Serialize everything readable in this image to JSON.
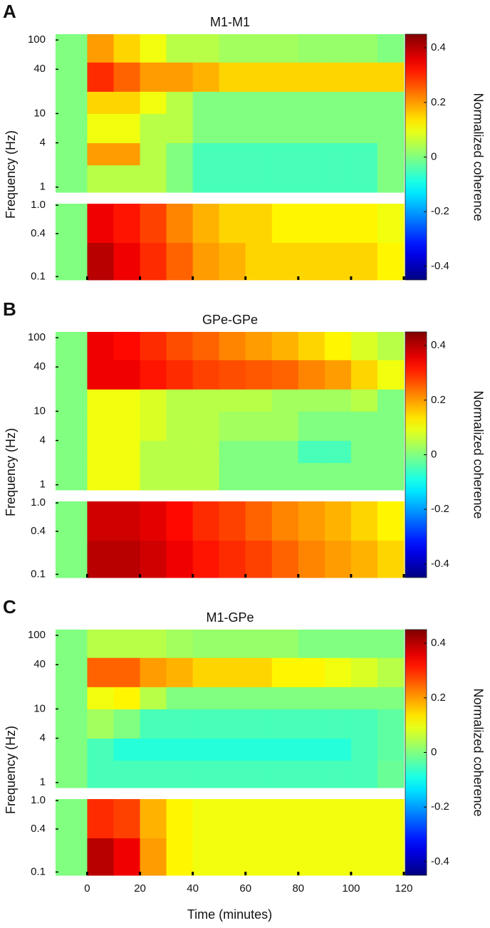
{
  "chart_data": [
    {
      "type": "heatmap",
      "panel": "A",
      "title": "M1-M1",
      "ylabel": "Frequency (Hz)",
      "x_bins": [
        -12,
        0,
        10,
        20,
        30,
        40,
        50,
        60,
        70,
        80,
        90,
        100,
        110,
        120
      ],
      "xlim": [
        -12,
        120
      ],
      "xticks": [
        0,
        20,
        40,
        60,
        80,
        100,
        120
      ],
      "upper": {
        "log": true,
        "ylim": [
          0.85,
          120
        ],
        "yticks": [
          1,
          4,
          10,
          40,
          100
        ],
        "y_bins": [
          0.85,
          2,
          4,
          10,
          20,
          50,
          120
        ],
        "z": [
          [
            0,
            0.05,
            0.05,
            0.05,
            0,
            -0.05,
            -0.05,
            -0.05,
            -0.05,
            -0.05,
            -0.05,
            -0.05,
            0
          ],
          [
            0,
            0.2,
            0.2,
            0.05,
            0,
            -0.05,
            -0.05,
            -0.05,
            -0.05,
            -0.05,
            -0.05,
            -0.05,
            0
          ],
          [
            0,
            0.1,
            0.1,
            0.05,
            0.05,
            0,
            0,
            0,
            0,
            0,
            0,
            0,
            0
          ],
          [
            0,
            0.15,
            0.15,
            0.1,
            0.05,
            0,
            0,
            0,
            0,
            0,
            0,
            0,
            0
          ],
          [
            0,
            0.3,
            0.25,
            0.2,
            0.2,
            0.18,
            0.15,
            0.15,
            0.15,
            0.15,
            0.15,
            0.15,
            0.15
          ],
          [
            0,
            0.2,
            0.15,
            0.1,
            0.05,
            0.05,
            0.03,
            0.03,
            0.03,
            0.02,
            0.02,
            0.02,
            0
          ]
        ]
      },
      "lower": {
        "log": true,
        "ylim": [
          0.09,
          1.05
        ],
        "yticks": [
          0.1,
          0.4,
          {
            "value": 1,
            "label": "1.0"
          }
        ],
        "y_bins": [
          0.09,
          0.3,
          1.05
        ],
        "z": [
          [
            0,
            0.4,
            0.35,
            0.3,
            0.25,
            0.2,
            0.18,
            0.15,
            0.15,
            0.15,
            0.15,
            0.15,
            0.12
          ],
          [
            0,
            0.35,
            0.32,
            0.28,
            0.22,
            0.18,
            0.15,
            0.15,
            0.12,
            0.12,
            0.12,
            0.12,
            0.1
          ]
        ]
      },
      "colorbar": {
        "label": "Normalized coherence",
        "lim": [
          -0.45,
          0.45
        ],
        "ticks": [
          -0.4,
          -0.2,
          0,
          0.2,
          0.4
        ]
      }
    },
    {
      "type": "heatmap",
      "panel": "B",
      "title": "GPe-GPe",
      "ylabel": "Frequency (Hz)",
      "x_bins": [
        -12,
        0,
        10,
        20,
        30,
        40,
        50,
        60,
        70,
        80,
        90,
        100,
        110,
        120
      ],
      "xlim": [
        -12,
        120
      ],
      "xticks": [
        0,
        20,
        40,
        60,
        80,
        100,
        120
      ],
      "upper": {
        "log": true,
        "ylim": [
          0.85,
          120
        ],
        "yticks": [
          1,
          4,
          10,
          40,
          100
        ],
        "y_bins": [
          0.85,
          2,
          4,
          10,
          20,
          50,
          120
        ],
        "z": [
          [
            0,
            0.1,
            0.1,
            0.05,
            0.05,
            0.05,
            0,
            0,
            0,
            0,
            0,
            0,
            0
          ],
          [
            0,
            0.1,
            0.1,
            0.05,
            0.05,
            0.05,
            0,
            0,
            0,
            -0.05,
            -0.05,
            0,
            0
          ],
          [
            0,
            0.1,
            0.1,
            0.08,
            0.05,
            0.05,
            0.03,
            0.03,
            0.03,
            0,
            0,
            0,
            0
          ],
          [
            0,
            0.1,
            0.1,
            0.08,
            0.05,
            0.05,
            0.05,
            0.05,
            0.03,
            0.03,
            0.03,
            0.05,
            0
          ],
          [
            0,
            0.35,
            0.35,
            0.32,
            0.3,
            0.28,
            0.27,
            0.26,
            0.25,
            0.22,
            0.2,
            0.15,
            0.1
          ],
          [
            0,
            0.35,
            0.33,
            0.3,
            0.27,
            0.25,
            0.22,
            0.2,
            0.18,
            0.15,
            0.12,
            0.08,
            0.05
          ]
        ]
      },
      "lower": {
        "log": true,
        "ylim": [
          0.09,
          1.05
        ],
        "yticks": [
          0.1,
          0.4,
          {
            "value": 1,
            "label": "1.0"
          }
        ],
        "y_bins": [
          0.09,
          0.3,
          1.05
        ],
        "z": [
          [
            0,
            0.4,
            0.4,
            0.38,
            0.35,
            0.32,
            0.3,
            0.28,
            0.25,
            0.22,
            0.2,
            0.18,
            0.15
          ],
          [
            0,
            0.38,
            0.38,
            0.36,
            0.33,
            0.3,
            0.28,
            0.25,
            0.22,
            0.2,
            0.18,
            0.15,
            0.12
          ]
        ]
      },
      "colorbar": {
        "label": "Normalized coherence",
        "lim": [
          -0.45,
          0.45
        ],
        "ticks": [
          -0.4,
          -0.2,
          0,
          0.2,
          0.4
        ]
      }
    },
    {
      "type": "heatmap",
      "panel": "C",
      "title": "M1-GPe",
      "ylabel": "Frequency (Hz)",
      "xlabel": "Time (minutes)",
      "x_bins": [
        -12,
        0,
        10,
        20,
        30,
        40,
        50,
        60,
        70,
        80,
        90,
        100,
        110,
        120
      ],
      "xlim": [
        -12,
        120
      ],
      "xticks": [
        0,
        20,
        40,
        60,
        80,
        100,
        120
      ],
      "upper": {
        "log": true,
        "ylim": [
          0.85,
          120
        ],
        "yticks": [
          1,
          4,
          10,
          40,
          100
        ],
        "y_bins": [
          0.85,
          2,
          4,
          10,
          20,
          50,
          120
        ],
        "z": [
          [
            0,
            -0.05,
            -0.05,
            -0.05,
            -0.05,
            -0.05,
            -0.05,
            -0.05,
            -0.05,
            -0.05,
            -0.05,
            -0.05,
            -0.02
          ],
          [
            0,
            -0.05,
            -0.08,
            -0.08,
            -0.08,
            -0.08,
            -0.08,
            -0.08,
            -0.08,
            -0.08,
            -0.08,
            -0.05,
            -0.03
          ],
          [
            0,
            0.03,
            0,
            -0.05,
            -0.05,
            -0.05,
            -0.05,
            -0.05,
            -0.05,
            -0.05,
            -0.05,
            -0.05,
            -0.03
          ],
          [
            0,
            0.1,
            0.12,
            0.05,
            0,
            0,
            0,
            0,
            0,
            0,
            0,
            0,
            0
          ],
          [
            0,
            0.25,
            0.25,
            0.2,
            0.18,
            0.15,
            0.15,
            0.15,
            0.12,
            0.12,
            0.1,
            0.08,
            0.05
          ],
          [
            0,
            0.05,
            0.05,
            0.05,
            0.03,
            0.02,
            0.02,
            0.02,
            0.02,
            0,
            0,
            0,
            0
          ]
        ]
      },
      "lower": {
        "log": true,
        "ylim": [
          0.09,
          1.05
        ],
        "yticks": [
          0.1,
          0.4,
          {
            "value": 1,
            "label": "1.0"
          }
        ],
        "y_bins": [
          0.09,
          0.3,
          1.05
        ],
        "z": [
          [
            0,
            0.4,
            0.35,
            0.2,
            0.12,
            0.1,
            0.1,
            0.1,
            0.1,
            0.1,
            0.1,
            0.1,
            0.1
          ],
          [
            0,
            0.3,
            0.28,
            0.18,
            0.12,
            0.1,
            0.1,
            0.1,
            0.1,
            0.1,
            0.1,
            0.1,
            0.1
          ]
        ]
      },
      "colorbar": {
        "label": "Normalized coherence",
        "lim": [
          -0.45,
          0.45
        ],
        "ticks": [
          -0.4,
          -0.2,
          0,
          0.2,
          0.4
        ]
      }
    }
  ]
}
